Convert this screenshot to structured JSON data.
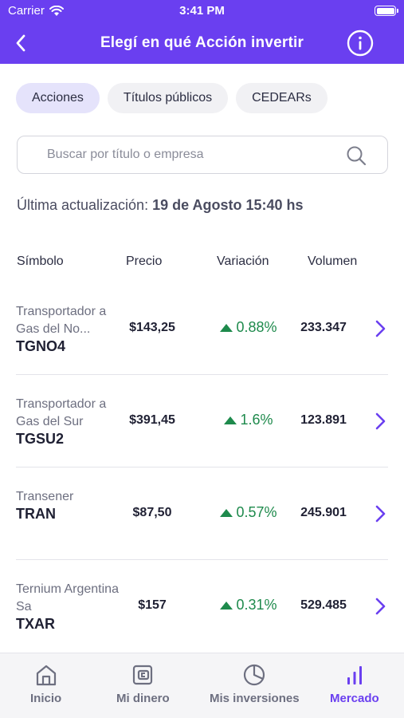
{
  "status_bar": {
    "carrier": "Carrier",
    "time": "3:41 PM"
  },
  "nav": {
    "title": "Elegí en qué Acción invertir"
  },
  "segments": [
    "Acciones",
    "Títulos públicos",
    "CEDEARs"
  ],
  "search": {
    "placeholder": "Buscar por título o empresa"
  },
  "last_update": {
    "label": "Última actualización:",
    "value": "19 de Agosto 15:40 hs"
  },
  "table": {
    "headers": [
      "Símbolo",
      "Precio",
      "Variación",
      "Volumen"
    ],
    "rows": [
      {
        "name": "Transportador a Gas del No...",
        "symbol": "TGNO4",
        "price": "$143,25",
        "variation": "0.88%",
        "volume": "233.347"
      },
      {
        "name": "Transportador a Gas del Sur",
        "symbol": "TGSU2",
        "price": "$391,45",
        "variation": "1.6%",
        "volume": "123.891"
      },
      {
        "name": "Transener",
        "symbol": "TRAN",
        "price": "$87,50",
        "variation": "0.57%",
        "volume": "245.901"
      },
      {
        "name": "Ternium Argentina Sa",
        "symbol": "TXAR",
        "price": "$157",
        "variation": "0.31%",
        "volume": "529.485"
      }
    ]
  },
  "tabs": [
    "Inicio",
    "Mi dinero",
    "Mis inversiones",
    "Mercado"
  ],
  "colors": {
    "brand": "#6a3ff0",
    "positive": "#1e8a4c",
    "chip_active": "#e5e3fb"
  }
}
